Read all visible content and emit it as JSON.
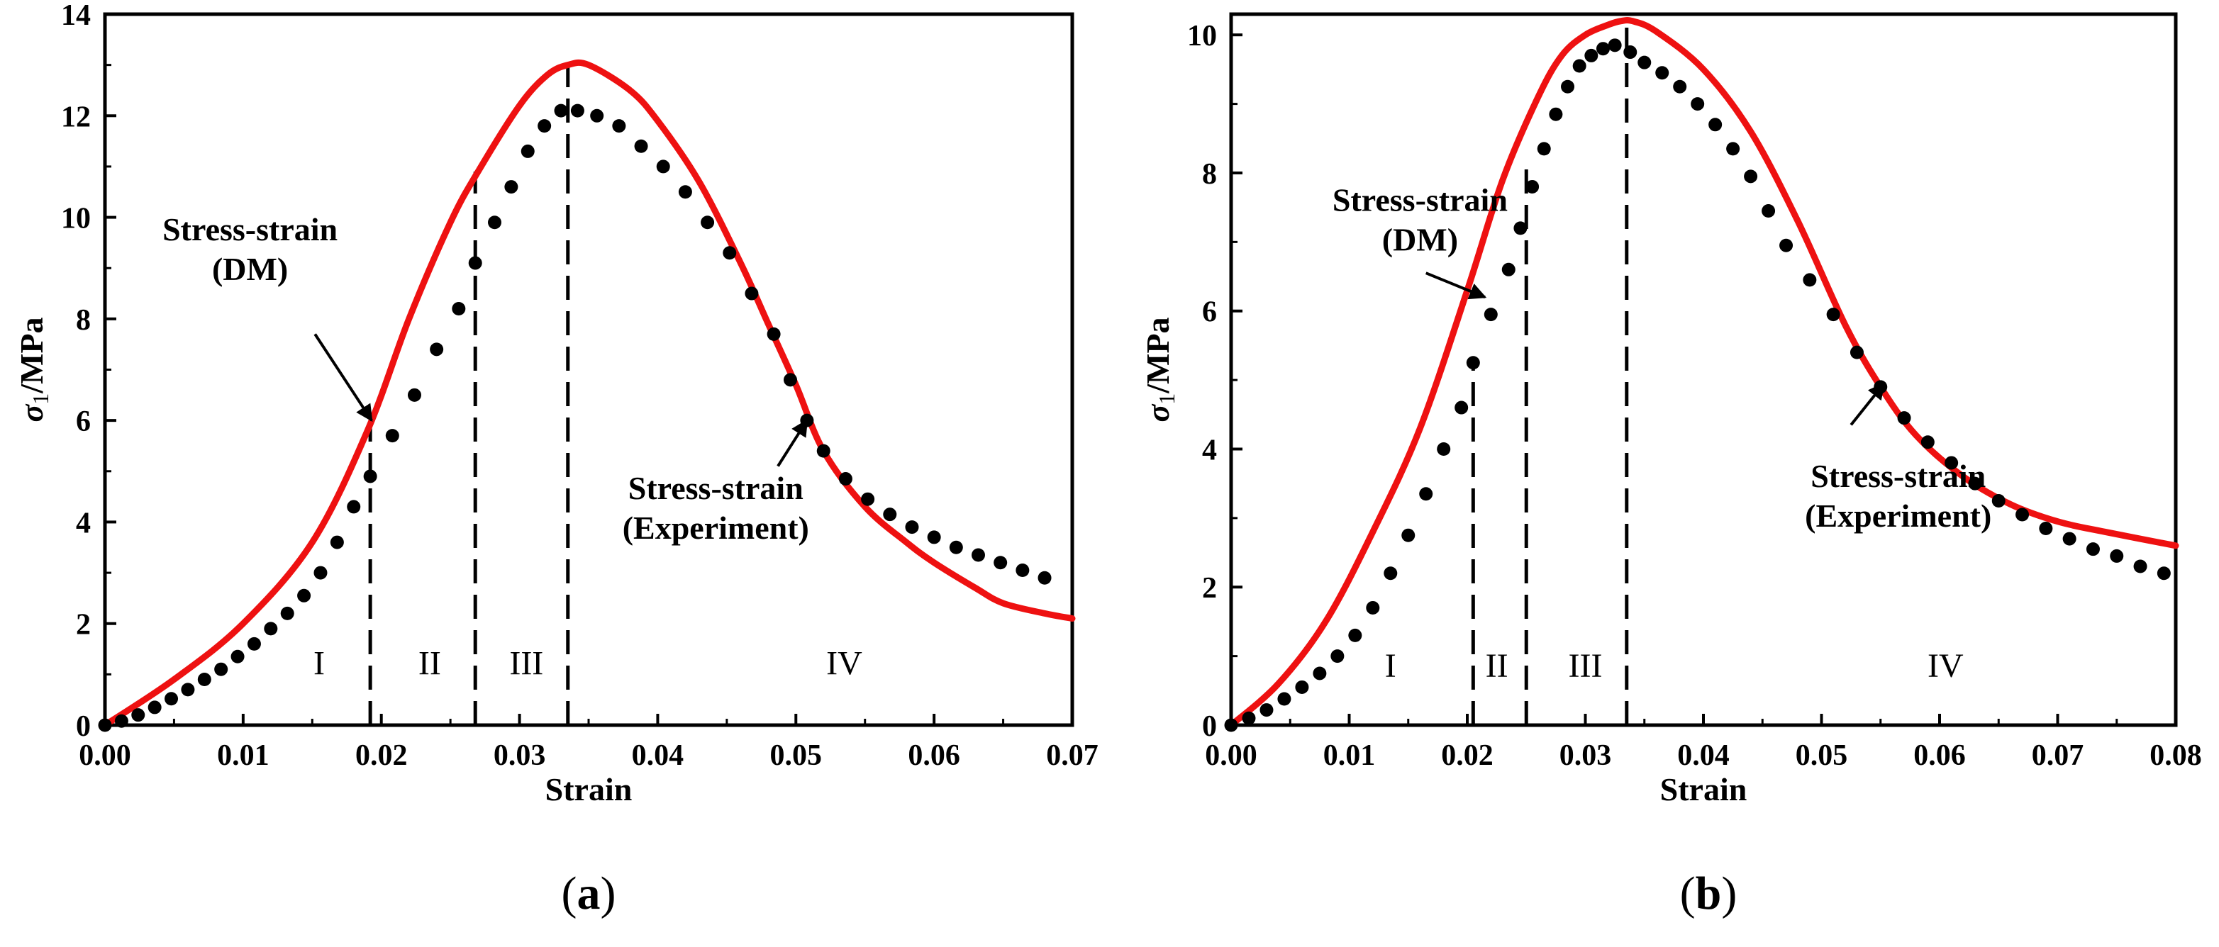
{
  "chart_data": [
    {
      "type": "line",
      "panel_label_prefix": "(",
      "panel_label_letter": "a",
      "panel_label_suffix": ")",
      "xlabel": "Strain",
      "ylabel_sym": "σ",
      "ylabel_sub": "1",
      "ylabel_unit": "/MPa",
      "xlim": [
        0,
        0.07
      ],
      "ylim": [
        0,
        14
      ],
      "xticks": [
        0.0,
        0.01,
        0.02,
        0.03,
        0.04,
        0.05,
        0.06,
        0.07
      ],
      "xtick_labels": [
        "0.00",
        "0.01",
        "0.02",
        "0.03",
        "0.04",
        "0.05",
        "0.06",
        "0.07"
      ],
      "yticks": [
        0,
        2,
        4,
        6,
        8,
        10,
        12,
        14
      ],
      "ytick_labels": [
        "0",
        "2",
        "4",
        "6",
        "8",
        "10",
        "12",
        "14"
      ],
      "series": [
        {
          "style": "line",
          "color": "#ee1111",
          "x": [
            0.0,
            0.005,
            0.01,
            0.015,
            0.019,
            0.022,
            0.025,
            0.027,
            0.03,
            0.032,
            0.0335,
            0.035,
            0.038,
            0.04,
            0.043,
            0.046,
            0.048,
            0.05,
            0.052,
            0.055,
            0.058,
            0.06,
            0.063,
            0.065,
            0.068,
            0.07
          ],
          "y": [
            0.0,
            0.9,
            2.0,
            3.6,
            5.8,
            8.0,
            9.9,
            10.9,
            12.2,
            12.8,
            13.0,
            13.0,
            12.5,
            11.9,
            10.7,
            9.1,
            7.9,
            6.7,
            5.4,
            4.3,
            3.6,
            3.2,
            2.7,
            2.4,
            2.2,
            2.1
          ]
        },
        {
          "style": "dots",
          "color": "#000000",
          "x": [
            0.0,
            0.0012,
            0.0024,
            0.0036,
            0.0048,
            0.006,
            0.0072,
            0.0084,
            0.0096,
            0.0108,
            0.012,
            0.0132,
            0.0144,
            0.0156,
            0.0168,
            0.018,
            0.0192,
            0.0208,
            0.0224,
            0.024,
            0.0256,
            0.0268,
            0.0282,
            0.0294,
            0.0306,
            0.0318,
            0.033,
            0.0342,
            0.0356,
            0.0372,
            0.0388,
            0.0404,
            0.042,
            0.0436,
            0.0452,
            0.0468,
            0.0484,
            0.0496,
            0.0508,
            0.052,
            0.0536,
            0.0552,
            0.0568,
            0.0584,
            0.06,
            0.0616,
            0.0632,
            0.0648,
            0.0664,
            0.068
          ],
          "y": [
            0.0,
            0.08,
            0.2,
            0.35,
            0.52,
            0.7,
            0.9,
            1.1,
            1.35,
            1.6,
            1.9,
            2.2,
            2.55,
            3.0,
            3.6,
            4.3,
            4.9,
            5.7,
            6.5,
            7.4,
            8.2,
            9.1,
            9.9,
            10.6,
            11.3,
            11.8,
            12.1,
            12.1,
            12.0,
            11.8,
            11.4,
            11.0,
            10.5,
            9.9,
            9.3,
            8.5,
            7.7,
            6.8,
            6.0,
            5.4,
            4.85,
            4.45,
            4.15,
            3.9,
            3.7,
            3.5,
            3.35,
            3.2,
            3.05,
            2.9
          ]
        }
      ],
      "vlines": [
        {
          "x": 0.0192,
          "y_top": 5.9
        },
        {
          "x": 0.0268,
          "y_top": 10.9
        },
        {
          "x": 0.0335,
          "y_top": 13.0
        }
      ],
      "regions": [
        {
          "label": "I",
          "x": 0.0155,
          "y": 1.0
        },
        {
          "label": "II",
          "x": 0.0235,
          "y": 1.0
        },
        {
          "label": "III",
          "x": 0.0305,
          "y": 1.0
        },
        {
          "label": "IV",
          "x": 0.0535,
          "y": 1.0
        }
      ],
      "annotations": [
        {
          "lines": [
            "Stress-strain",
            "(DM)"
          ],
          "text_x": 0.0105,
          "text_y": 9.55,
          "arrow_from": [
            0.0152,
            7.7
          ],
          "arrow_to": [
            0.0193,
            6.0
          ]
        },
        {
          "lines": [
            "Stress-strain",
            "(Experiment)"
          ],
          "text_x": 0.0442,
          "text_y": 4.45,
          "arrow_from": [
            0.0487,
            5.1
          ],
          "arrow_to": [
            0.0508,
            6.0
          ]
        }
      ]
    },
    {
      "type": "line",
      "panel_label_prefix": "(",
      "panel_label_letter": "b",
      "panel_label_suffix": ")",
      "xlabel": "Strain",
      "ylabel_sym": "σ",
      "ylabel_sub": "1",
      "ylabel_unit": "/MPa",
      "xlim": [
        0,
        0.08
      ],
      "ylim": [
        0,
        10.3
      ],
      "xticks": [
        0.0,
        0.01,
        0.02,
        0.03,
        0.04,
        0.05,
        0.06,
        0.07,
        0.08
      ],
      "xtick_labels": [
        "0.00",
        "0.01",
        "0.02",
        "0.03",
        "0.04",
        "0.05",
        "0.06",
        "0.07",
        "0.08"
      ],
      "yticks": [
        0,
        2,
        4,
        6,
        8,
        10
      ],
      "ytick_labels": [
        "0",
        "2",
        "4",
        "6",
        "8",
        "10"
      ],
      "series": [
        {
          "style": "line",
          "color": "#ee1111",
          "x": [
            0.0,
            0.004,
            0.008,
            0.012,
            0.016,
            0.02,
            0.023,
            0.026,
            0.028,
            0.03,
            0.032,
            0.033,
            0.034,
            0.036,
            0.04,
            0.044,
            0.048,
            0.052,
            0.055,
            0.058,
            0.062,
            0.066,
            0.07,
            0.074,
            0.08
          ],
          "y": [
            0.0,
            0.6,
            1.5,
            2.8,
            4.3,
            6.3,
            7.9,
            9.1,
            9.7,
            10.0,
            10.15,
            10.2,
            10.2,
            10.05,
            9.5,
            8.6,
            7.3,
            5.8,
            4.9,
            4.2,
            3.6,
            3.2,
            2.95,
            2.8,
            2.6
          ]
        },
        {
          "style": "dots",
          "color": "#000000",
          "x": [
            0.0,
            0.0015,
            0.003,
            0.0045,
            0.006,
            0.0075,
            0.009,
            0.0105,
            0.012,
            0.0135,
            0.015,
            0.0165,
            0.018,
            0.0195,
            0.0205,
            0.022,
            0.0235,
            0.0245,
            0.0255,
            0.0265,
            0.0275,
            0.0285,
            0.0295,
            0.0305,
            0.0315,
            0.0325,
            0.0338,
            0.035,
            0.0365,
            0.038,
            0.0395,
            0.041,
            0.0425,
            0.044,
            0.0455,
            0.047,
            0.049,
            0.051,
            0.053,
            0.055,
            0.057,
            0.059,
            0.061,
            0.063,
            0.065,
            0.067,
            0.069,
            0.071,
            0.073,
            0.075,
            0.077,
            0.079
          ],
          "y": [
            0.0,
            0.1,
            0.22,
            0.38,
            0.55,
            0.75,
            1.0,
            1.3,
            1.7,
            2.2,
            2.75,
            3.35,
            4.0,
            4.6,
            5.25,
            5.95,
            6.6,
            7.2,
            7.8,
            8.35,
            8.85,
            9.25,
            9.55,
            9.7,
            9.8,
            9.85,
            9.75,
            9.6,
            9.45,
            9.25,
            9.0,
            8.7,
            8.35,
            7.95,
            7.45,
            6.95,
            6.45,
            5.95,
            5.4,
            4.9,
            4.45,
            4.1,
            3.8,
            3.5,
            3.25,
            3.05,
            2.85,
            2.7,
            2.55,
            2.45,
            2.3,
            2.2
          ]
        }
      ],
      "vlines": [
        {
          "x": 0.0205,
          "y_top": 5.3
        },
        {
          "x": 0.025,
          "y_top": 8.2
        },
        {
          "x": 0.0335,
          "y_top": 10.2
        }
      ],
      "regions": [
        {
          "label": "I",
          "x": 0.0135,
          "y": 0.7
        },
        {
          "label": "II",
          "x": 0.0225,
          "y": 0.7
        },
        {
          "label": "III",
          "x": 0.03,
          "y": 0.7
        },
        {
          "label": "IV",
          "x": 0.0605,
          "y": 0.7
        }
      ],
      "annotations": [
        {
          "lines": [
            "Stress-strain",
            "(DM)"
          ],
          "text_x": 0.016,
          "text_y": 7.45,
          "arrow_from": [
            0.0165,
            6.55
          ],
          "arrow_to": [
            0.0215,
            6.2
          ]
        },
        {
          "lines": [
            "Stress-strain",
            "(Experiment)"
          ],
          "text_x": 0.0565,
          "text_y": 3.45,
          "arrow_from": [
            0.0525,
            4.35
          ],
          "arrow_to": [
            0.0553,
            4.95
          ]
        }
      ]
    }
  ]
}
